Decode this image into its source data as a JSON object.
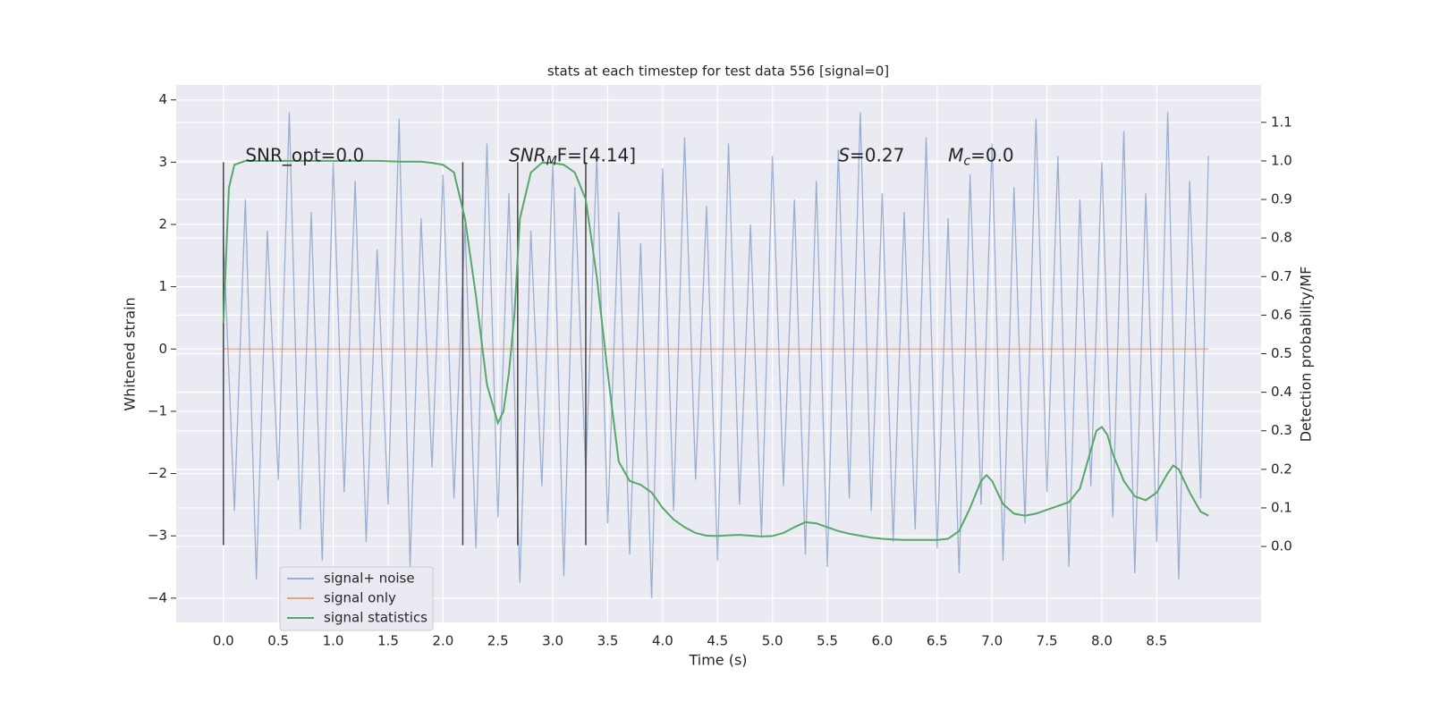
{
  "chart_data": {
    "type": "line",
    "title": "stats at each timestep for test data 556 [signal=0]",
    "xlabel": "Time (s)",
    "ylabel": "Whitened strain",
    "y2label": "Detection probability/MF",
    "xlim": [
      -0.43,
      9.45
    ],
    "ylim": [
      -4.39,
      4.24
    ],
    "y2lim": [
      -0.197,
      1.197
    ],
    "grid": true,
    "legend": "lower left",
    "xticks": [
      {
        "value": 0,
        "label": "0.0"
      },
      {
        "value": 0.5,
        "label": "0.5"
      },
      {
        "value": 1,
        "label": "1.0"
      },
      {
        "value": 1.5,
        "label": "1.5"
      },
      {
        "value": 2,
        "label": "2.0"
      },
      {
        "value": 2.5,
        "label": "2.5"
      },
      {
        "value": 3,
        "label": "3.0"
      },
      {
        "value": 3.5,
        "label": "3.5"
      },
      {
        "value": 4,
        "label": "4.0"
      },
      {
        "value": 4.5,
        "label": "4.5"
      },
      {
        "value": 5,
        "label": "5.0"
      },
      {
        "value": 5.5,
        "label": "5.5"
      },
      {
        "value": 6,
        "label": "6.0"
      },
      {
        "value": 6.5,
        "label": "6.5"
      },
      {
        "value": 7,
        "label": "7.0"
      },
      {
        "value": 7.5,
        "label": "7.5"
      },
      {
        "value": 8,
        "label": "8.0"
      },
      {
        "value": 8.5,
        "label": "8.5"
      }
    ],
    "yticks": [
      {
        "value": -4,
        "label": "−4"
      },
      {
        "value": -3,
        "label": "−3"
      },
      {
        "value": -2,
        "label": "−2"
      },
      {
        "value": -1,
        "label": "−1"
      },
      0,
      1,
      2,
      3,
      4
    ],
    "y2ticks": [
      {
        "value": 0,
        "label": "0.0"
      },
      {
        "value": 0.1,
        "label": "0.1"
      },
      {
        "value": 0.2,
        "label": "0.2"
      },
      {
        "value": 0.3,
        "label": "0.3"
      },
      {
        "value": 0.4,
        "label": "0.4"
      },
      {
        "value": 0.5,
        "label": "0.5"
      },
      {
        "value": 0.6,
        "label": "0.6"
      },
      {
        "value": 0.7,
        "label": "0.7"
      },
      {
        "value": 0.8,
        "label": "0.8"
      },
      {
        "value": 0.9,
        "label": "0.9"
      },
      {
        "value": 1,
        "label": "1.0"
      },
      {
        "value": 1.1,
        "label": "1.1"
      }
    ],
    "vlines": {
      "color": "#444444",
      "x": [
        0,
        2.18,
        2.68,
        3.3
      ],
      "ymin": -3.15,
      "ymax": 3.0
    },
    "annotations": [
      {
        "x": 0.2,
        "y": 3.1,
        "parts": [
          {
            "text": "SNR_opt=0.0"
          }
        ]
      },
      {
        "x": 2.6,
        "y": 3.1,
        "parts": [
          {
            "text": "SNR",
            "italic": true
          },
          {
            "text": "M",
            "italic": true,
            "sub": true
          },
          {
            "text": "F=[4.14]"
          }
        ]
      },
      {
        "x": 5.6,
        "y": 3.1,
        "parts": [
          {
            "text": "S",
            "italic": true
          },
          {
            "text": "=0.27"
          }
        ]
      },
      {
        "x": 6.6,
        "y": 3.1,
        "parts": [
          {
            "text": "M",
            "italic": true
          },
          {
            "text": "c",
            "italic": true,
            "sub": true
          },
          {
            "text": "=0.0"
          }
        ]
      }
    ],
    "series": [
      {
        "name": "signal+ noise",
        "color": "#4c72b0",
        "x": [
          0,
          0.1,
          0.2,
          0.3,
          0.4,
          0.5,
          0.6,
          0.7,
          0.8,
          0.9,
          1,
          1.1,
          1.2,
          1.3,
          1.4,
          1.5,
          1.6,
          1.7,
          1.8,
          1.9,
          2,
          2.1,
          2.2,
          2.3,
          2.4,
          2.5,
          2.6,
          2.7,
          2.8,
          2.9,
          3,
          3.1,
          3.2,
          3.3,
          3.4,
          3.5,
          3.6,
          3.7,
          3.8,
          3.9,
          4,
          4.1,
          4.2,
          4.3,
          4.4,
          4.5,
          4.6,
          4.7,
          4.8,
          4.9,
          5,
          5.1,
          5.2,
          5.3,
          5.4,
          5.5,
          5.6,
          5.7,
          5.8,
          5.9,
          6,
          6.1,
          6.2,
          6.3,
          6.4,
          6.5,
          6.6,
          6.7,
          6.8,
          6.9,
          7,
          7.1,
          7.2,
          7.3,
          7.4,
          7.5,
          7.6,
          7.7,
          7.8,
          7.9,
          8,
          8.1,
          8.2,
          8.3,
          8.4,
          8.5,
          8.6,
          8.7,
          8.8,
          8.9,
          8.97
        ],
        "values": [
          1.8,
          -2.6,
          2.4,
          -3.7,
          1.9,
          -2.1,
          3.8,
          -2.9,
          2.2,
          -3.4,
          3.0,
          -2.3,
          2.7,
          -3.1,
          1.6,
          -2.5,
          3.7,
          -3.5,
          2.1,
          -1.9,
          2.8,
          -2.4,
          2.0,
          -3.2,
          3.3,
          -2.7,
          2.5,
          -3.75,
          1.9,
          -2.2,
          3.0,
          -3.65,
          2.6,
          -2.0,
          3.1,
          -2.8,
          2.2,
          -3.3,
          1.7,
          -4.0,
          2.9,
          -2.6,
          3.4,
          -2.1,
          2.3,
          -3.4,
          3.3,
          -2.5,
          2.0,
          -3.0,
          3.1,
          -2.2,
          2.4,
          -3.3,
          2.7,
          -3.5,
          3.2,
          -2.4,
          3.8,
          -2.6,
          2.5,
          -3.1,
          2.2,
          -2.9,
          3.4,
          -3.2,
          2.1,
          -3.6,
          2.8,
          -2.5,
          3.3,
          -3.4,
          2.6,
          -2.8,
          3.7,
          -2.3,
          3.1,
          -3.5,
          2.4,
          -2.2,
          3.0,
          -2.7,
          3.5,
          -3.6,
          2.5,
          -3.1,
          3.8,
          -3.7,
          2.7,
          -2.4,
          3.1
        ],
        "alpha": 0.5
      },
      {
        "name": "signal only",
        "color": "#dd8452",
        "x": [
          0,
          8.97
        ],
        "values": [
          0,
          0
        ],
        "alpha": 0.7
      },
      {
        "name": "signal statistics",
        "color": "#55a868",
        "axis": "y2",
        "x": [
          0,
          0.05,
          0.1,
          0.2,
          0.4,
          0.6,
          0.8,
          1.0,
          1.2,
          1.4,
          1.6,
          1.8,
          1.9,
          2.0,
          2.1,
          2.2,
          2.3,
          2.4,
          2.5,
          2.55,
          2.6,
          2.65,
          2.7,
          2.8,
          2.9,
          3.0,
          3.1,
          3.2,
          3.3,
          3.4,
          3.5,
          3.6,
          3.7,
          3.8,
          3.9,
          4.0,
          4.1,
          4.2,
          4.3,
          4.4,
          4.5,
          4.6,
          4.7,
          4.8,
          4.9,
          5.0,
          5.1,
          5.2,
          5.3,
          5.4,
          5.5,
          5.6,
          5.7,
          5.8,
          5.9,
          6.0,
          6.1,
          6.2,
          6.3,
          6.4,
          6.5,
          6.6,
          6.7,
          6.8,
          6.9,
          6.95,
          7.0,
          7.1,
          7.2,
          7.3,
          7.4,
          7.5,
          7.6,
          7.7,
          7.8,
          7.9,
          7.95,
          8.0,
          8.05,
          8.1,
          8.2,
          8.3,
          8.4,
          8.5,
          8.6,
          8.65,
          8.7,
          8.8,
          8.9,
          8.97
        ],
        "values": [
          0.58,
          0.93,
          0.99,
          1.0,
          1.0,
          1.0,
          1.0,
          1.0,
          1.0,
          1.0,
          0.998,
          0.998,
          0.995,
          0.99,
          0.97,
          0.85,
          0.65,
          0.42,
          0.32,
          0.35,
          0.45,
          0.6,
          0.85,
          0.97,
          0.995,
          0.995,
          0.99,
          0.97,
          0.9,
          0.7,
          0.45,
          0.22,
          0.17,
          0.16,
          0.14,
          0.1,
          0.07,
          0.05,
          0.035,
          0.028,
          0.027,
          0.029,
          0.03,
          0.028,
          0.026,
          0.027,
          0.035,
          0.05,
          0.063,
          0.06,
          0.05,
          0.04,
          0.033,
          0.028,
          0.023,
          0.02,
          0.018,
          0.017,
          0.017,
          0.017,
          0.017,
          0.02,
          0.04,
          0.1,
          0.17,
          0.185,
          0.17,
          0.11,
          0.085,
          0.08,
          0.085,
          0.095,
          0.105,
          0.115,
          0.15,
          0.25,
          0.3,
          0.31,
          0.29,
          0.24,
          0.17,
          0.13,
          0.12,
          0.14,
          0.19,
          0.21,
          0.2,
          0.14,
          0.09,
          0.08
        ],
        "alpha": 1
      }
    ]
  }
}
